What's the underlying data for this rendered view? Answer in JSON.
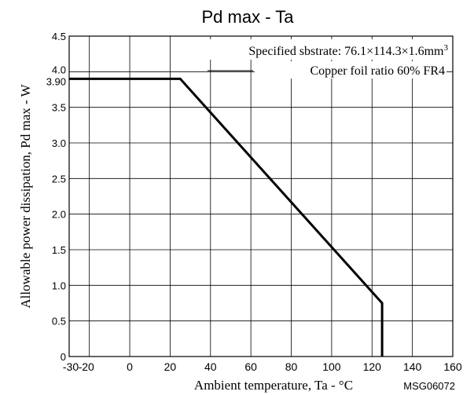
{
  "chart_data": {
    "type": "line",
    "title": "Pd max - Ta",
    "xlabel": "Ambient temperature, Ta - °C",
    "ylabel": "Allowable power dissipation, Pd max - W",
    "xlim": [
      -30,
      160
    ],
    "ylim": [
      0,
      4.5
    ],
    "x_ticks": [
      -30,
      -20,
      0,
      20,
      40,
      60,
      80,
      100,
      120,
      140,
      160
    ],
    "x_tick_labels": [
      "-30",
      "-20",
      "0",
      "20",
      "40",
      "60",
      "80",
      "100",
      "120",
      "140",
      "160"
    ],
    "y_ticks": [
      0,
      0.5,
      1.0,
      1.5,
      2.0,
      2.5,
      3.0,
      3.5,
      4.0,
      4.5
    ],
    "y_tick_labels": [
      "0",
      "0.5",
      "1.0",
      "1.5",
      "2.0",
      "2.5",
      "3.0",
      "3.5",
      "4.0",
      "4.5"
    ],
    "extra_y_tick": {
      "value": 3.9,
      "label": "3.90"
    },
    "grid": true,
    "series": [
      {
        "values": [
          [
            -30,
            3.9
          ],
          [
            25,
            3.9
          ],
          [
            125,
            0.75
          ],
          [
            125,
            0
          ]
        ],
        "color": "#000000"
      }
    ],
    "annotations": {
      "substrate_prefix": "Specified sbstrate: 76.1×114.3×1.6mm",
      "substrate_sup": "3",
      "copper": "Copper foil ratio 60% FR4"
    },
    "code": "MSG06072"
  }
}
